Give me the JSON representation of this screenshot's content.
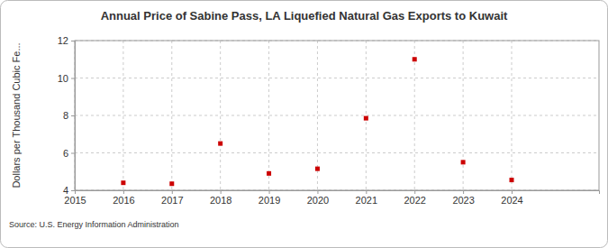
{
  "chart_data": {
    "type": "scatter",
    "title": "Annual Price of Sabine Pass, LA Liquefied Natural Gas Exports to Kuwait",
    "y_label": "Dollars per Thousand Cubic Fe...",
    "source": "Source: U.S. Energy Information Administration",
    "x": [
      2016,
      2017,
      2018,
      2019,
      2020,
      2021,
      2022,
      2023,
      2024
    ],
    "values": [
      4.4,
      4.35,
      6.5,
      4.9,
      5.15,
      7.85,
      11.0,
      5.5,
      4.55
    ],
    "color": "#cc0000",
    "marker": "square",
    "xlim": [
      2015,
      2025.8
    ],
    "xticks": [
      2015,
      2016,
      2017,
      2018,
      2019,
      2020,
      2021,
      2022,
      2023,
      2024
    ],
    "ylim": [
      4,
      12
    ],
    "yticks": [
      4,
      6,
      8,
      10,
      12
    ],
    "grid": true
  }
}
